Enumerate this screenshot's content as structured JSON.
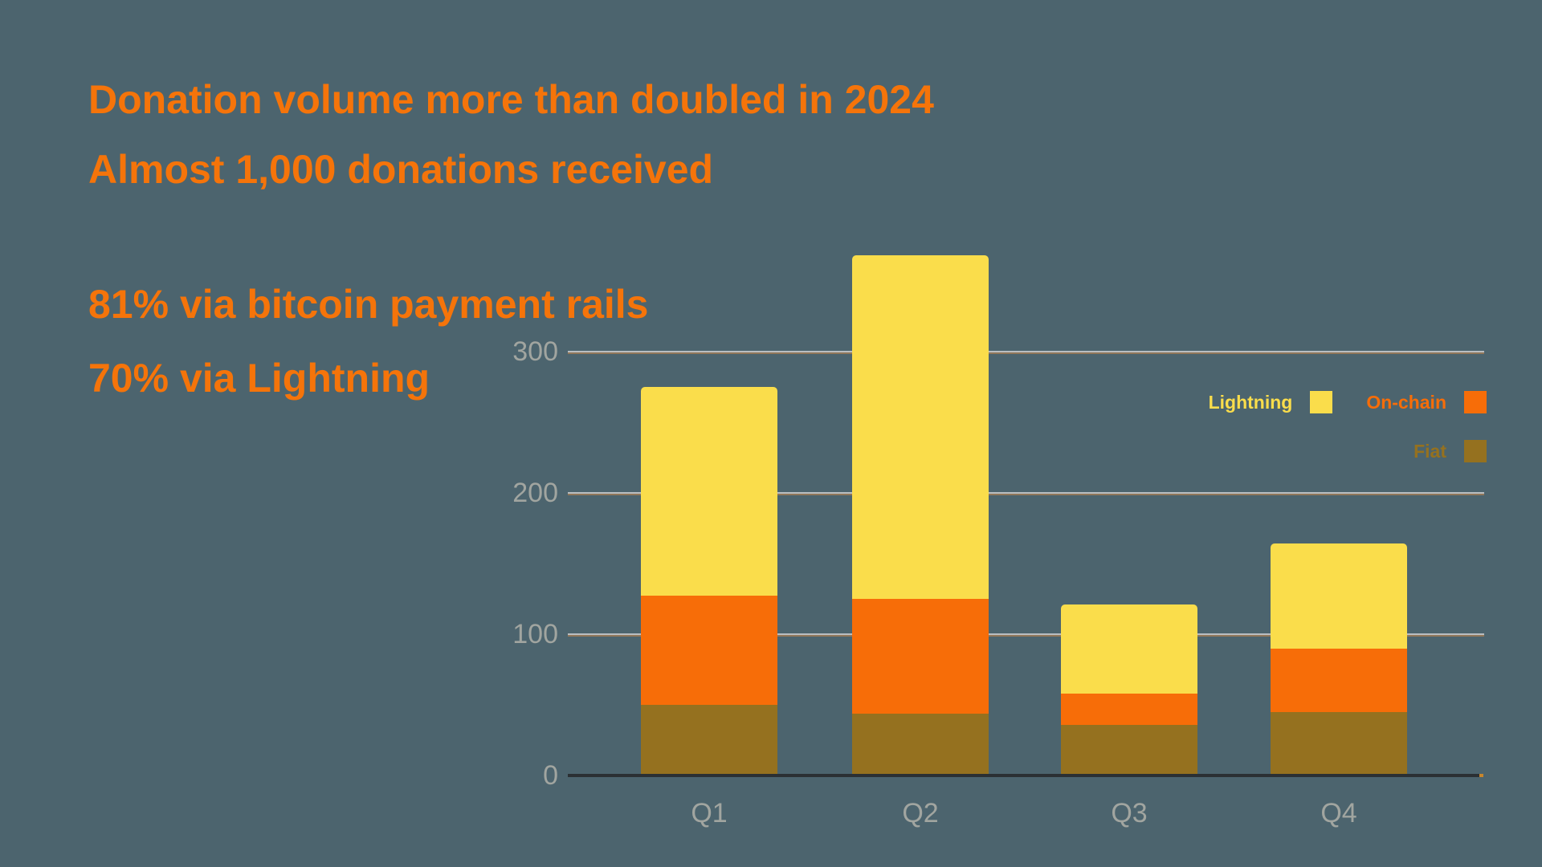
{
  "slide": {
    "background_color": "#4c646e",
    "accent_color": "#f5740a"
  },
  "headline": {
    "line1": "Donation volume more than doubled in 2024",
    "line2": "Almost 1,000 donations received"
  },
  "stats": {
    "line1": "81% via bitcoin payment rails",
    "line2": "70% via Lightning"
  },
  "chart_data": {
    "type": "bar",
    "stacked": true,
    "categories": [
      "Q1",
      "Q2",
      "Q3",
      "Q4"
    ],
    "series": [
      {
        "name": "Lightning",
        "color": "#fadd4b",
        "values": [
          148,
          243,
          63,
          74
        ]
      },
      {
        "name": "On-chain",
        "color": "#f76d08",
        "values": [
          77,
          81,
          22,
          45
        ]
      },
      {
        "name": "Fiat",
        "color": "#95711f",
        "values": [
          50,
          44,
          36,
          45
        ]
      }
    ],
    "stack_order_bottom_to_top": [
      "Fiat",
      "On-chain",
      "Lightning"
    ],
    "totals": [
      275,
      368,
      121,
      164
    ],
    "title": "",
    "xlabel": "",
    "ylabel": "",
    "y_ticks": [
      0,
      100,
      200,
      300
    ],
    "ylim": [
      0,
      380
    ],
    "grid": true,
    "gridline_color": "#b9bec1",
    "axis_text_color": "#a1a5a0",
    "baseline_color": "#2b3034",
    "legend_position": "top-right"
  }
}
